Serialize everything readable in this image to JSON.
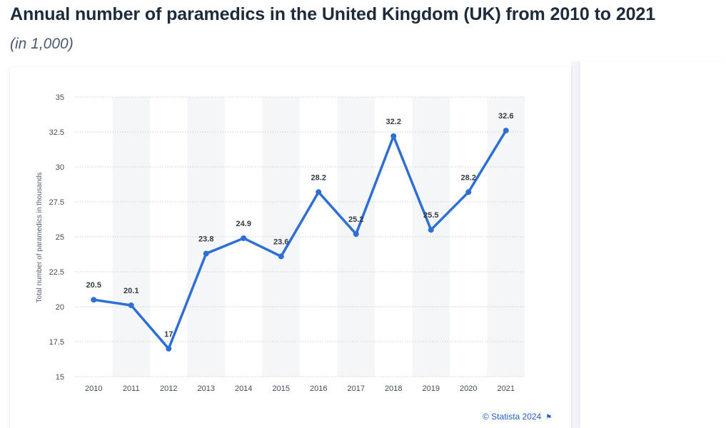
{
  "header": {
    "title": "Annual number of paramedics in the United Kingdom (UK) from 2010 to 2021",
    "subtitle": "(in 1,000)"
  },
  "credit": {
    "text": "© Statista 2024",
    "icon": "flag-icon"
  },
  "colors": {
    "line": "#2e6fd6",
    "band": "#f5f6f8",
    "grid": "#c8ccd2"
  },
  "chart_data": {
    "type": "line",
    "title": "",
    "xlabel": "",
    "ylabel": "Total number of paramedics in thousands",
    "ylim": [
      15,
      35
    ],
    "yticks": [
      "15",
      "17.5",
      "20",
      "22.5",
      "25",
      "27.5",
      "30",
      "32.5",
      "35"
    ],
    "grid": true,
    "categories": [
      "2010",
      "2011",
      "2012",
      "2013",
      "2014",
      "2015",
      "2016",
      "2017",
      "2018",
      "2019",
      "2020",
      "2021"
    ],
    "series": [
      {
        "values": [
          20.5,
          20.1,
          17,
          23.8,
          24.9,
          23.6,
          28.2,
          25.2,
          32.2,
          25.5,
          28.2,
          32.6
        ],
        "labels": [
          "20.5",
          "20.1",
          "17",
          "23.8",
          "24.9",
          "23.6",
          "28.2",
          "25.2",
          "32.2",
          "25.5",
          "28.2",
          "32.6"
        ]
      }
    ]
  }
}
